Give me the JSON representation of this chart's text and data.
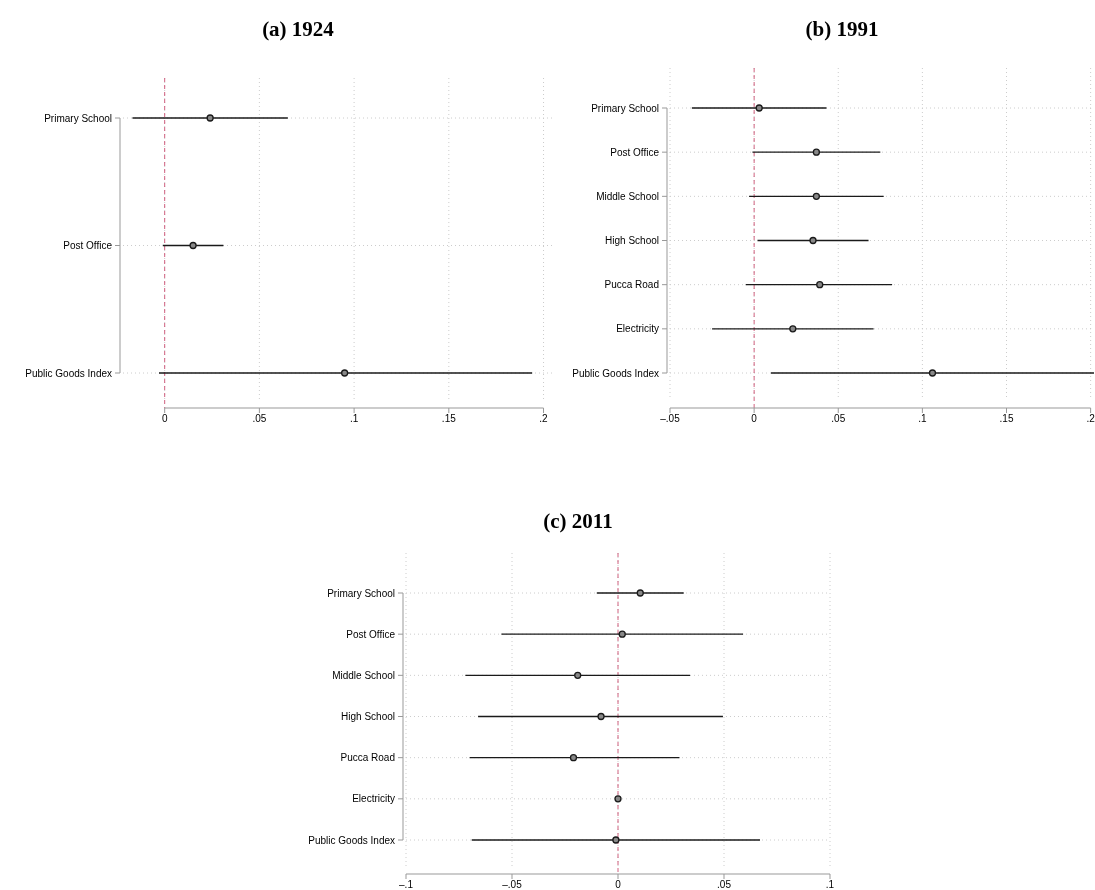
{
  "chart_data": [
    {
      "type": "scatter",
      "title": "(a) 1924",
      "orientation": "horizontal",
      "categories": [
        "Primary School",
        "Post Office",
        "Public Goods Index"
      ],
      "series": [
        {
          "color": "#1a1a1a",
          "values": [
            0.024,
            0.015,
            0.095
          ],
          "errors": [
            [
              -0.017,
              0.065
            ],
            [
              -0.001,
              0.031
            ],
            [
              -0.003,
              0.194
            ]
          ]
        }
      ],
      "xlim": [
        -0.022,
        0.205
      ],
      "xticks": [
        {
          "value": 0,
          "label": "0"
        },
        {
          "value": 0.05,
          "label": ".05"
        },
        {
          "value": 0.1,
          "label": ".1"
        },
        {
          "value": 0.15,
          "label": ".15"
        },
        {
          "value": 0.2,
          "label": ".2"
        }
      ],
      "ref_lines": [
        {
          "axis": "x",
          "value": 0,
          "color": "#d0607f",
          "line_style": "dashed"
        }
      ],
      "grid": true,
      "marker": "circle"
    },
    {
      "type": "scatter",
      "title": "(b) 1991",
      "orientation": "horizontal",
      "categories": [
        "Primary School",
        "Post Office",
        "Middle School",
        "High School",
        "Pucca Road",
        "Electricity",
        "Public Goods Index"
      ],
      "series": [
        {
          "color": "#1a1a1a",
          "values": [
            0.003,
            0.037,
            0.037,
            0.035,
            0.039,
            0.023,
            0.106
          ],
          "errors": [
            [
              -0.037,
              0.043
            ],
            [
              -0.001,
              0.075
            ],
            [
              -0.003,
              0.077
            ],
            [
              0.002,
              0.068
            ],
            [
              -0.005,
              0.082
            ],
            [
              -0.025,
              0.071
            ],
            [
              0.01,
              0.202
            ]
          ]
        }
      ],
      "xlim": [
        -0.05,
        0.202
      ],
      "xticks": [
        {
          "value": -0.05,
          "label": "–.05"
        },
        {
          "value": 0,
          "label": "0"
        },
        {
          "value": 0.05,
          "label": ".05"
        },
        {
          "value": 0.1,
          "label": ".1"
        },
        {
          "value": 0.15,
          "label": ".15"
        },
        {
          "value": 0.2,
          "label": ".2"
        }
      ],
      "ref_lines": [
        {
          "axis": "x",
          "value": 0,
          "color": "#d0607f",
          "line_style": "dashed"
        }
      ],
      "grid": true,
      "marker": "circle"
    },
    {
      "type": "scatter",
      "title": "(c) 2011",
      "orientation": "horizontal",
      "categories": [
        "Primary School",
        "Post Office",
        "Middle School",
        "High School",
        "Pucca Road",
        "Electricity",
        "Public Goods Index"
      ],
      "series": [
        {
          "color": "#1a1a1a",
          "values": [
            0.0105,
            0.002,
            -0.019,
            -0.008,
            -0.021,
            0,
            -0.001
          ],
          "errors": [
            [
              -0.01,
              0.031
            ],
            [
              -0.055,
              0.059
            ],
            [
              -0.072,
              0.034
            ],
            [
              -0.066,
              0.0495
            ],
            [
              -0.07,
              0.029
            ],
            null,
            [
              -0.069,
              0.067
            ]
          ]
        }
      ],
      "xlim": [
        -0.1,
        0.1
      ],
      "xticks": [
        {
          "value": -0.1,
          "label": "–.1"
        },
        {
          "value": -0.05,
          "label": "–.05"
        },
        {
          "value": 0,
          "label": "0"
        },
        {
          "value": 0.05,
          "label": ".05"
        },
        {
          "value": 0.1,
          "label": ".1"
        }
      ],
      "ref_lines": [
        {
          "axis": "x",
          "value": 0,
          "color": "#d0607f",
          "line_style": "dashed"
        }
      ],
      "grid": true,
      "marker": "circle"
    }
  ]
}
